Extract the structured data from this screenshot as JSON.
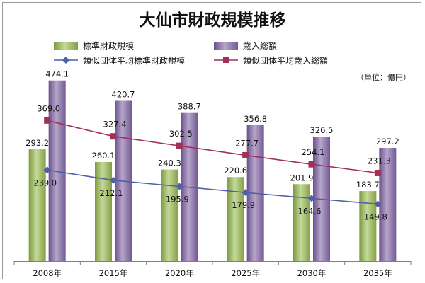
{
  "chart_data": {
    "type": "bar",
    "title": "大仙市財政規模推移",
    "unit_label": "（単位：億円）",
    "categories": [
      "2008年",
      "2015年",
      "2020年",
      "2025年",
      "2030年",
      "2035年"
    ],
    "bar_series": [
      {
        "name": "標準財政規模",
        "values": [
          293.2,
          260.1,
          240.3,
          220.6,
          201.9,
          183.7
        ],
        "color": "#9bbb59"
      },
      {
        "name": "歳入総額",
        "values": [
          474.1,
          420.7,
          388.7,
          356.8,
          326.5,
          297.2
        ],
        "color": "#8064a2"
      }
    ],
    "line_series": [
      {
        "name": "類似団体平均標準財政規模",
        "values": [
          239.0,
          212.1,
          195.9,
          179.9,
          164.6,
          149.8
        ],
        "color": "#4f5fa8",
        "marker": "diamond"
      },
      {
        "name": "類似団体平均歳入総額",
        "values": [
          369.0,
          327.4,
          302.5,
          277.7,
          254.1,
          231.3
        ],
        "color": "#a0305a",
        "marker": "square"
      }
    ],
    "ylim": [
      0,
      520
    ],
    "grid": false,
    "legend_position": "top"
  }
}
